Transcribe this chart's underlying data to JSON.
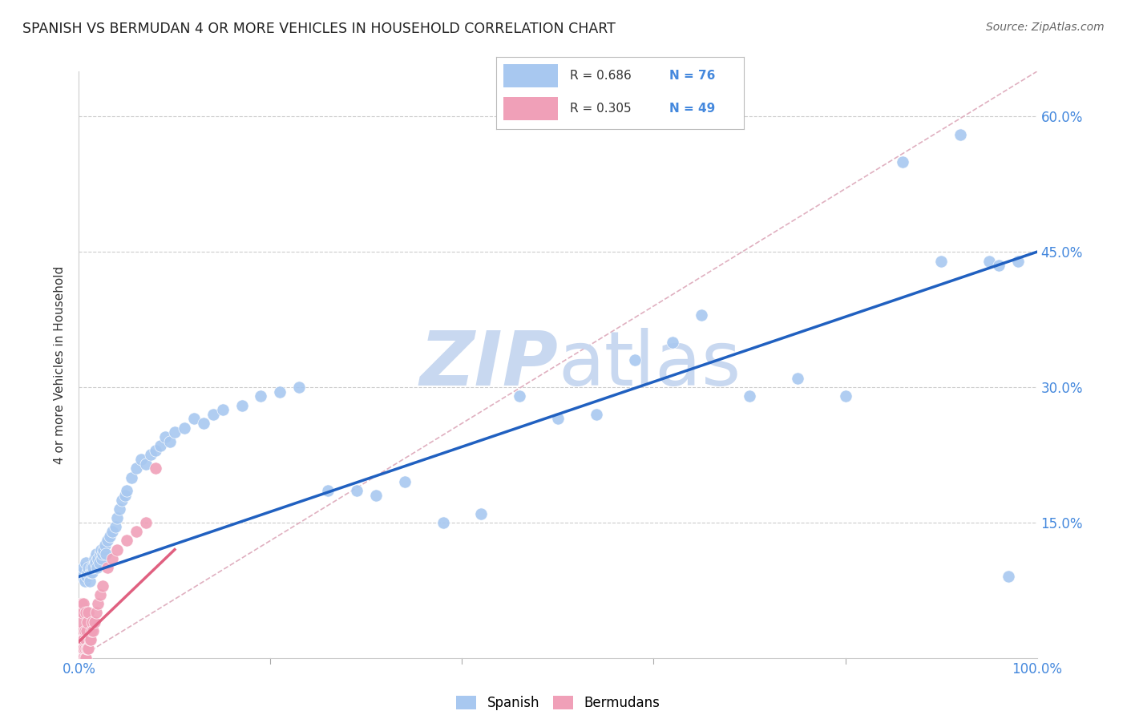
{
  "title": "SPANISH VS BERMUDAN 4 OR MORE VEHICLES IN HOUSEHOLD CORRELATION CHART",
  "source": "Source: ZipAtlas.com",
  "ylabel_label": "4 or more Vehicles in Household",
  "r_spanish": 0.686,
  "n_spanish": 76,
  "r_bermudan": 0.305,
  "n_bermudan": 49,
  "watermark_zip": "ZIP",
  "watermark_atlas": "atlas",
  "blue_scatter": "#a8c8f0",
  "pink_scatter": "#f0a0b8",
  "line_blue": "#2060c0",
  "line_pink": "#e06080",
  "dashed_color": "#e0b0c0",
  "title_color": "#222222",
  "source_color": "#666666",
  "axis_blue": "#4488dd",
  "watermark_color": "#c8d8f0",
  "xlim": [
    0.0,
    1.0
  ],
  "ylim": [
    0.0,
    0.65
  ],
  "y_ticks": [
    0.0,
    0.15,
    0.3,
    0.45,
    0.6
  ],
  "x_ticks": [
    0.0,
    0.2,
    0.4,
    0.6,
    0.8,
    1.0
  ],
  "sp_x": [
    0.003,
    0.004,
    0.005,
    0.006,
    0.007,
    0.008,
    0.009,
    0.01,
    0.011,
    0.012,
    0.013,
    0.014,
    0.015,
    0.016,
    0.017,
    0.018,
    0.019,
    0.02,
    0.021,
    0.022,
    0.023,
    0.024,
    0.025,
    0.026,
    0.027,
    0.028,
    0.03,
    0.032,
    0.035,
    0.038,
    0.04,
    0.042,
    0.045,
    0.048,
    0.05,
    0.055,
    0.06,
    0.065,
    0.07,
    0.075,
    0.08,
    0.085,
    0.09,
    0.095,
    0.1,
    0.11,
    0.12,
    0.13,
    0.14,
    0.15,
    0.17,
    0.19,
    0.21,
    0.23,
    0.26,
    0.29,
    0.31,
    0.34,
    0.38,
    0.42,
    0.46,
    0.5,
    0.54,
    0.58,
    0.62,
    0.65,
    0.7,
    0.75,
    0.8,
    0.86,
    0.9,
    0.92,
    0.95,
    0.96,
    0.97,
    0.98
  ],
  "sp_y": [
    0.09,
    0.095,
    0.1,
    0.085,
    0.105,
    0.09,
    0.095,
    0.1,
    0.085,
    0.095,
    0.1,
    0.095,
    0.1,
    0.11,
    0.105,
    0.115,
    0.1,
    0.11,
    0.105,
    0.115,
    0.12,
    0.11,
    0.115,
    0.12,
    0.125,
    0.115,
    0.13,
    0.135,
    0.14,
    0.145,
    0.155,
    0.165,
    0.175,
    0.18,
    0.185,
    0.2,
    0.21,
    0.22,
    0.215,
    0.225,
    0.23,
    0.235,
    0.245,
    0.24,
    0.25,
    0.255,
    0.265,
    0.26,
    0.27,
    0.275,
    0.28,
    0.29,
    0.295,
    0.3,
    0.185,
    0.185,
    0.18,
    0.195,
    0.15,
    0.16,
    0.29,
    0.265,
    0.27,
    0.33,
    0.35,
    0.38,
    0.29,
    0.31,
    0.29,
    0.55,
    0.44,
    0.58,
    0.44,
    0.435,
    0.09,
    0.44
  ],
  "bm_x": [
    0.001,
    0.001,
    0.001,
    0.002,
    0.002,
    0.002,
    0.002,
    0.003,
    0.003,
    0.003,
    0.003,
    0.003,
    0.004,
    0.004,
    0.004,
    0.004,
    0.005,
    0.005,
    0.005,
    0.005,
    0.006,
    0.006,
    0.006,
    0.007,
    0.007,
    0.007,
    0.008,
    0.008,
    0.009,
    0.009,
    0.01,
    0.01,
    0.011,
    0.012,
    0.013,
    0.014,
    0.015,
    0.016,
    0.018,
    0.02,
    0.022,
    0.025,
    0.03,
    0.035,
    0.04,
    0.05,
    0.06,
    0.07,
    0.08
  ],
  "bm_y": [
    0.0,
    0.02,
    0.05,
    0.0,
    0.01,
    0.03,
    0.06,
    0.0,
    0.01,
    0.02,
    0.04,
    0.06,
    0.0,
    0.01,
    0.02,
    0.05,
    0.0,
    0.01,
    0.02,
    0.06,
    0.0,
    0.01,
    0.03,
    0.0,
    0.02,
    0.05,
    0.01,
    0.03,
    0.01,
    0.04,
    0.01,
    0.05,
    0.02,
    0.02,
    0.03,
    0.04,
    0.03,
    0.04,
    0.05,
    0.06,
    0.07,
    0.08,
    0.1,
    0.11,
    0.12,
    0.13,
    0.14,
    0.15,
    0.21
  ]
}
